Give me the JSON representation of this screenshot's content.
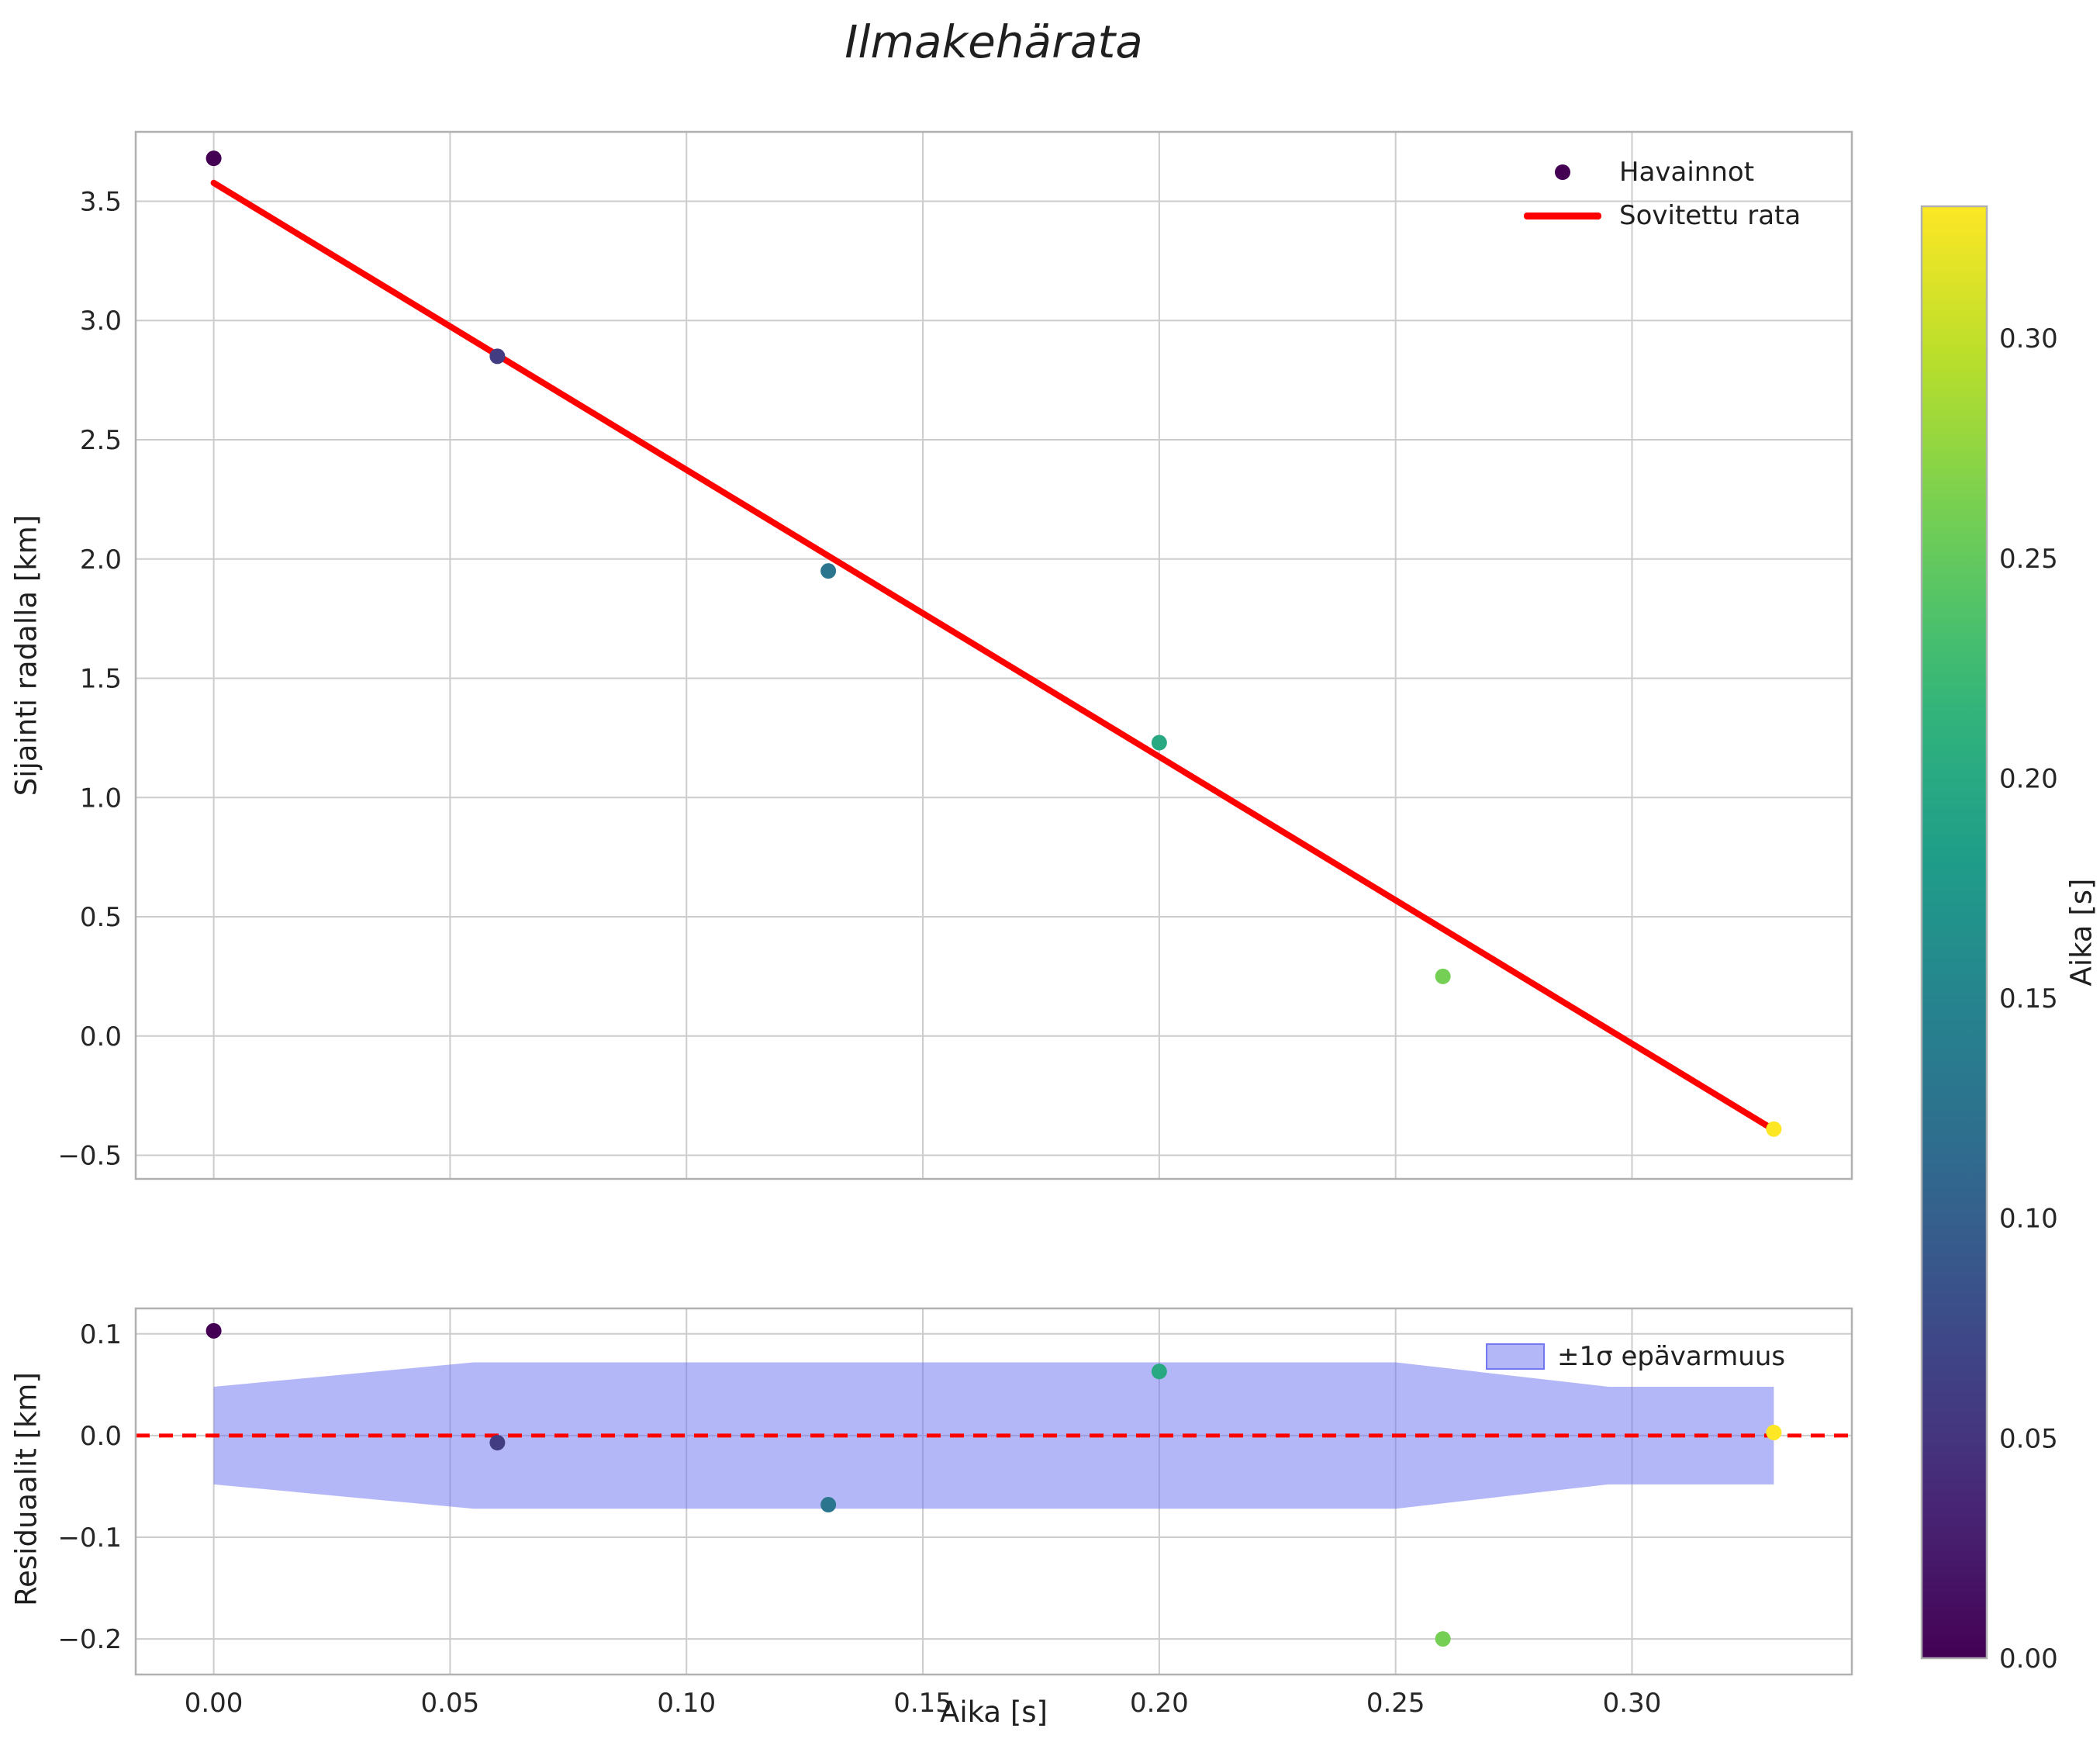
{
  "title": "Ilmakehärata",
  "colors": {
    "fit": "#ff0000",
    "zero_line": "#ff0000",
    "band": "#6a6ff0",
    "band_opacity": 0.5,
    "grid": "#cccccc",
    "spine": "#b0b0b0",
    "text": "#262626",
    "colormap": "viridis"
  },
  "chart_data": [
    {
      "id": "trajectory",
      "type": "scatter",
      "title": "Ilmakehärata",
      "ylabel": "Sijainti radalla [km]",
      "xlim": [
        -0.0165,
        0.3465
      ],
      "ylim": [
        -0.599,
        3.791
      ],
      "grid": true,
      "legend_position": "upper right",
      "xticks": {
        "values": [
          0.0,
          0.05,
          0.1,
          0.15,
          0.2,
          0.25,
          0.3
        ],
        "labels": [
          "0.00",
          "0.05",
          "0.10",
          "0.15",
          "0.20",
          "0.25",
          "0.30"
        ],
        "show_labels": false
      },
      "yticks": {
        "values": [
          3.5,
          3.0,
          2.5,
          2.0,
          1.5,
          1.0,
          0.5,
          0.0,
          -0.5
        ],
        "labels": [
          "3.5",
          "3.0",
          "2.5",
          "2.0",
          "1.5",
          "1.0",
          "0.5",
          "0.0",
          "−0.5"
        ]
      },
      "series": [
        {
          "name": "Havainnot",
          "type": "scatter",
          "colormap": "viridis",
          "color_by": "x",
          "color_norm": [
            0,
            0.33
          ],
          "x": [
            0.0,
            0.06,
            0.13,
            0.2,
            0.26,
            0.33
          ],
          "y": [
            3.68,
            2.85,
            1.95,
            1.23,
            0.25,
            -0.39
          ]
        },
        {
          "name": "Sovitettu rata",
          "type": "line",
          "x": [
            0.0,
            0.33
          ],
          "y": [
            3.577,
            -0.393
          ]
        }
      ]
    },
    {
      "id": "residuals",
      "type": "scatter",
      "xlabel": "Aika [s]",
      "ylabel": "Residuaalit [km]",
      "xlim": [
        -0.0165,
        0.3465
      ],
      "ylim": [
        -0.235,
        0.125
      ],
      "grid": true,
      "xticks": {
        "values": [
          0.0,
          0.05,
          0.1,
          0.15,
          0.2,
          0.25,
          0.3
        ],
        "labels": [
          "0.00",
          "0.05",
          "0.10",
          "0.15",
          "0.20",
          "0.25",
          "0.30"
        ],
        "show_labels": true
      },
      "yticks": {
        "values": [
          0.1,
          0.0,
          -0.1,
          -0.2
        ],
        "labels": [
          "0.1",
          "0.0",
          "−0.1",
          "−0.2"
        ]
      },
      "zero_line": {
        "y": 0,
        "style": "dashed"
      },
      "band": {
        "name": "±1σ epävarmuus",
        "x": [
          0.0,
          0.055,
          0.25,
          0.295,
          0.33
        ],
        "upper": [
          0.048,
          0.072,
          0.072,
          0.048,
          0.048
        ],
        "lower": [
          -0.048,
          -0.072,
          -0.072,
          -0.048,
          -0.048
        ]
      },
      "series": [
        {
          "name": "Residuaalit",
          "type": "scatter",
          "colormap": "viridis",
          "color_by": "x",
          "color_norm": [
            0,
            0.33
          ],
          "x": [
            0.0,
            0.06,
            0.13,
            0.2,
            0.26,
            0.33
          ],
          "y": [
            0.103,
            -0.007,
            -0.068,
            0.063,
            -0.2,
            0.003
          ]
        }
      ]
    },
    {
      "id": "colorbar",
      "type": "colorbar",
      "label": "Aika [s]",
      "colormap": "viridis",
      "range": [
        0,
        0.33
      ],
      "ticks": {
        "values": [
          0.3,
          0.25,
          0.2,
          0.15,
          0.1,
          0.05,
          0.0
        ],
        "labels": [
          "0.30",
          "0.25",
          "0.20",
          "0.15",
          "0.10",
          "0.05",
          "0.00"
        ]
      }
    }
  ]
}
